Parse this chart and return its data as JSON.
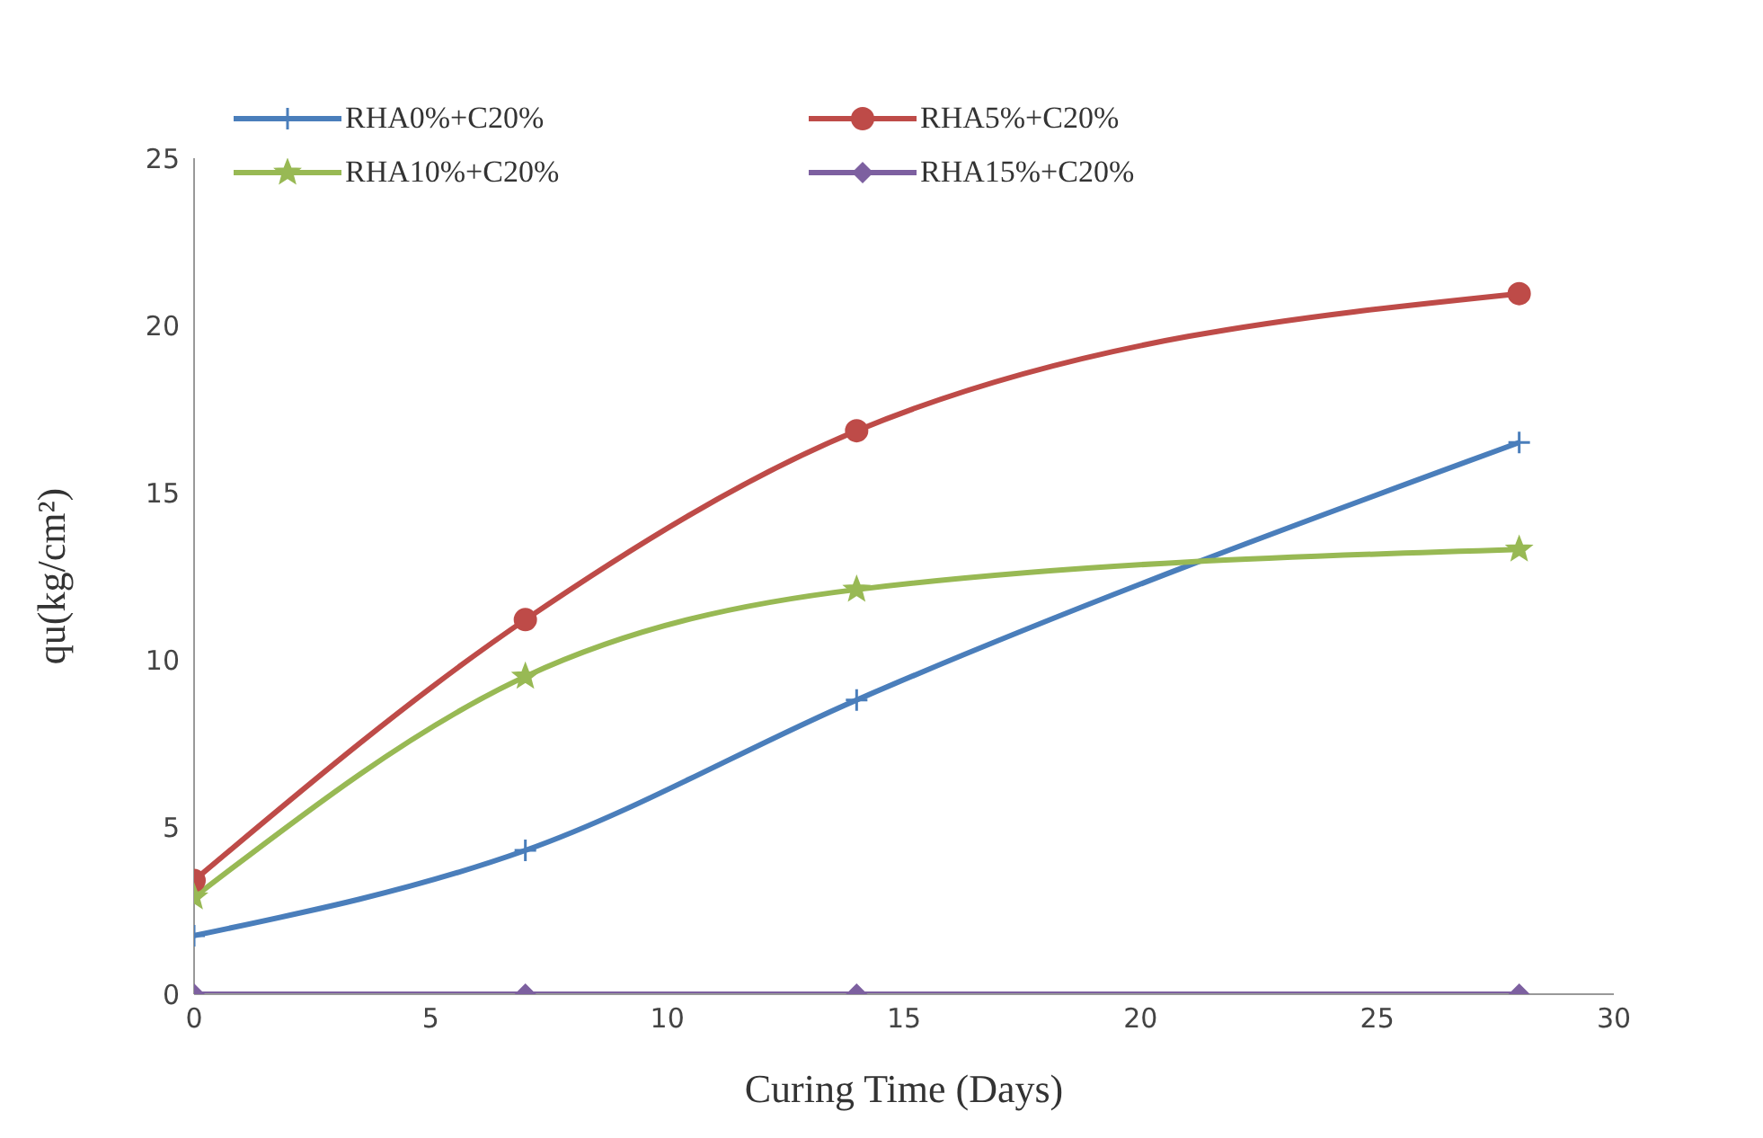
{
  "chart_data": {
    "type": "line",
    "xlabel": "Curing Time (Days)",
    "ylabel": "qu(kg/cm²)",
    "x": [
      0,
      7,
      14,
      28
    ],
    "xlim": [
      0,
      30
    ],
    "xticks": [
      0,
      5,
      10,
      15,
      20,
      25,
      30
    ],
    "ylim": [
      0,
      25
    ],
    "yticks": [
      0,
      5,
      10,
      15,
      20,
      25
    ],
    "legend": "top",
    "series": [
      {
        "name": "RHA0%+C20%",
        "color": "#4a7ebb",
        "marker": "cross",
        "values": [
          1.75,
          4.3,
          8.8,
          16.5
        ]
      },
      {
        "name": "RHA5%+C20%",
        "color": "#be4b48",
        "marker": "circle",
        "values": [
          3.4,
          11.2,
          16.85,
          20.95
        ]
      },
      {
        "name": "RHA10%+C20%",
        "color": "#98b954",
        "marker": "star",
        "values": [
          2.9,
          9.5,
          12.1,
          13.3
        ]
      },
      {
        "name": "RHA15%+C20%",
        "color": "#7d60a0",
        "marker": "diamond",
        "values": [
          0,
          0,
          0,
          0
        ]
      }
    ]
  }
}
